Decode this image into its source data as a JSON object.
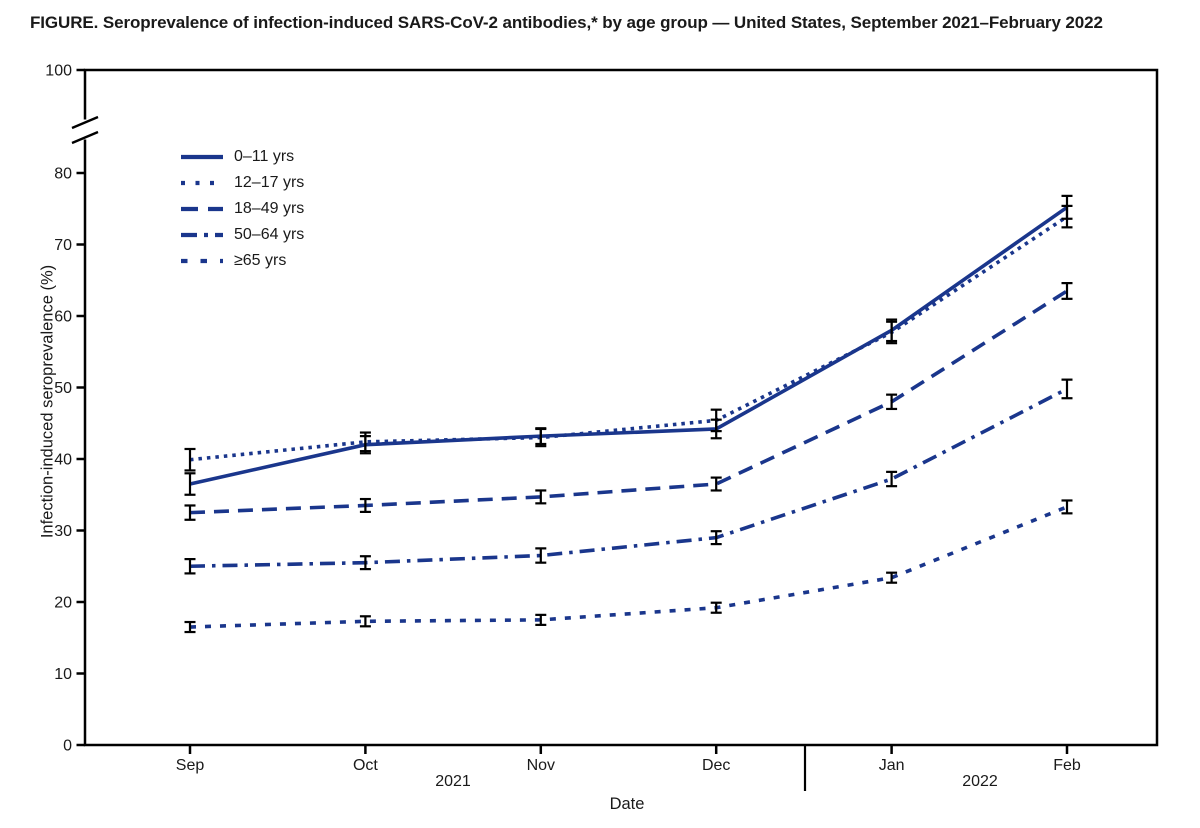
{
  "colors": {
    "accent": "#1a368c",
    "axis": "#000000",
    "error_bar": "#000000",
    "text": "#1a1a1a"
  },
  "chart_data": {
    "type": "line",
    "title": "FIGURE. Seroprevalence of infection-induced SARS-CoV-2 antibodies,* by age group — United States, September 2021–February 2022",
    "xlabel": "Date",
    "ylabel": "Infection-induced seroprevalence (%)",
    "x": [
      "Sep",
      "Oct",
      "Nov",
      "Dec",
      "Jan",
      "Feb"
    ],
    "year_groups": [
      {
        "label": "2021",
        "months": [
          "Sep",
          "Oct",
          "Nov",
          "Dec"
        ]
      },
      {
        "label": "2022",
        "months": [
          "Jan",
          "Feb"
        ]
      }
    ],
    "ylim": [
      0,
      100
    ],
    "y_ticks": [
      0,
      10,
      20,
      30,
      40,
      50,
      60,
      70,
      80,
      100
    ],
    "y_axis_break_between": [
      80,
      100
    ],
    "grid": false,
    "legend_position": "top-left",
    "error_bars": true,
    "series": [
      {
        "name": "0–11 yrs",
        "style": "solid",
        "values": [
          36.5,
          42.0,
          43.2,
          44.2,
          58.0,
          75.2
        ],
        "ci_low": [
          35.0,
          40.8,
          42.1,
          42.9,
          56.5,
          73.6
        ],
        "ci_high": [
          38.0,
          43.2,
          44.3,
          45.5,
          59.5,
          76.8
        ]
      },
      {
        "name": "12–17 yrs",
        "style": "dotted",
        "values": [
          39.9,
          42.4,
          43.0,
          45.4,
          57.7,
          73.9
        ],
        "ci_low": [
          38.4,
          41.1,
          41.8,
          43.9,
          56.2,
          72.4
        ],
        "ci_high": [
          41.4,
          43.7,
          44.2,
          46.9,
          59.2,
          75.4
        ]
      },
      {
        "name": "18–49 yrs",
        "style": "dashed",
        "values": [
          32.5,
          33.5,
          34.7,
          36.5,
          48.0,
          63.5
        ],
        "ci_low": [
          31.5,
          32.6,
          33.8,
          35.6,
          47.0,
          62.4
        ],
        "ci_high": [
          33.5,
          34.4,
          35.6,
          37.4,
          49.0,
          64.6
        ]
      },
      {
        "name": "50–64 yrs",
        "style": "dash-dot",
        "values": [
          25.0,
          25.5,
          26.5,
          29.0,
          37.2,
          49.8
        ],
        "ci_low": [
          24.0,
          24.6,
          25.5,
          28.1,
          36.2,
          48.5
        ],
        "ci_high": [
          26.0,
          26.4,
          27.5,
          29.9,
          38.2,
          51.1
        ]
      },
      {
        "name": "≥65 yrs",
        "style": "square-dot",
        "values": [
          16.5,
          17.3,
          17.5,
          19.2,
          23.4,
          33.3
        ],
        "ci_low": [
          15.8,
          16.6,
          16.8,
          18.5,
          22.7,
          32.4
        ],
        "ci_high": [
          17.2,
          18.0,
          18.2,
          19.9,
          24.1,
          34.2
        ]
      }
    ]
  }
}
